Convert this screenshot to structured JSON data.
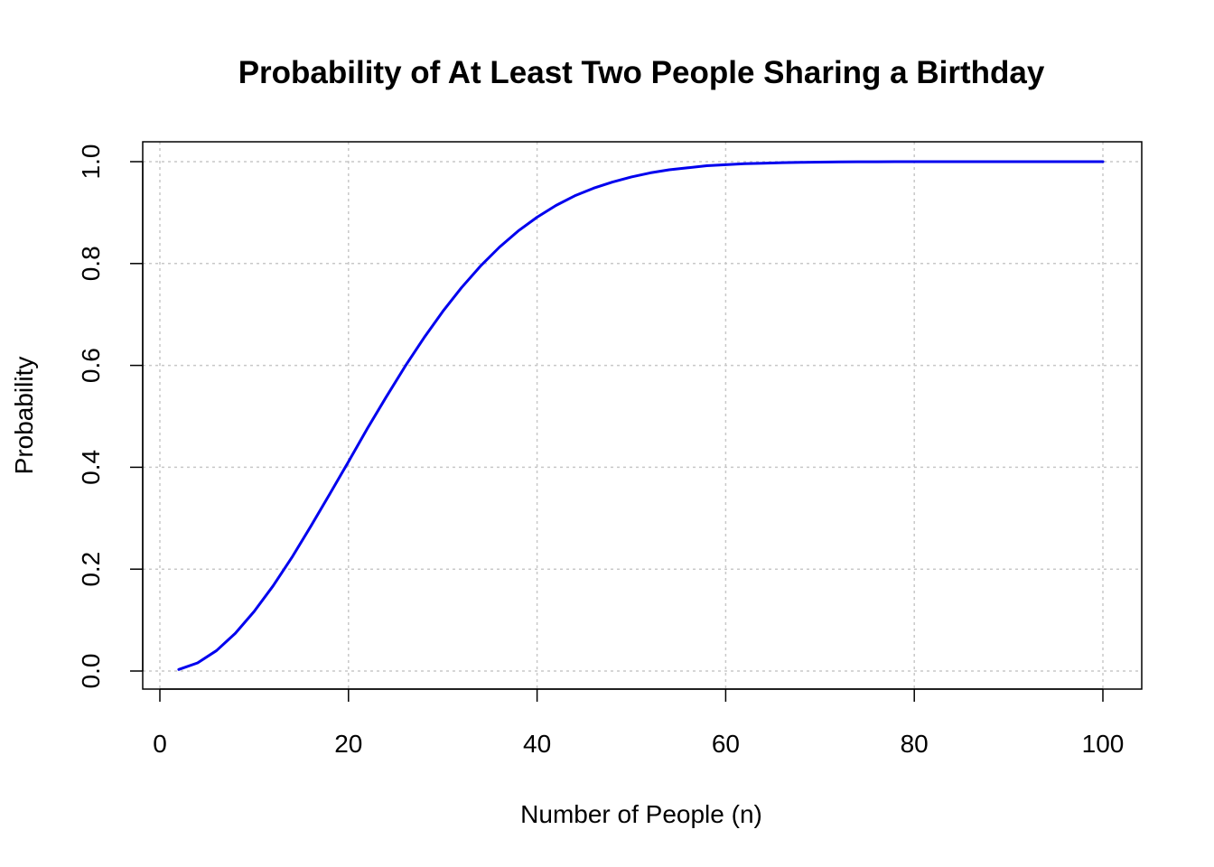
{
  "chart_data": {
    "type": "line",
    "title": "Probability of At Least Two People Sharing a Birthday",
    "xlabel": "Number of People (n)",
    "ylabel": "Probability",
    "xlim": [
      0,
      100
    ],
    "ylim": [
      0,
      1
    ],
    "x_ticks": [
      0,
      20,
      40,
      60,
      80,
      100
    ],
    "x_tick_labels": [
      "0",
      "20",
      "40",
      "60",
      "80",
      "100"
    ],
    "y_ticks": [
      0,
      0.2,
      0.4,
      0.6,
      0.8,
      1.0
    ],
    "y_tick_labels": [
      "0.0",
      "0.2",
      "0.4",
      "0.6",
      "0.8",
      "1.0"
    ],
    "grid": true,
    "line_color": "#0000ee",
    "grid_color": "#c8c8c8",
    "series": [
      {
        "x": [
          2,
          4,
          6,
          8,
          10,
          12,
          14,
          16,
          18,
          20,
          22,
          24,
          26,
          28,
          30,
          32,
          34,
          36,
          38,
          40,
          42,
          44,
          46,
          48,
          50,
          52,
          54,
          56,
          58,
          60,
          62,
          64,
          66,
          68,
          70,
          72,
          74,
          76,
          78,
          80,
          82,
          84,
          86,
          88,
          90,
          92,
          94,
          96,
          98,
          100
        ],
        "values": [
          0.003,
          0.016,
          0.04,
          0.074,
          0.117,
          0.167,
          0.223,
          0.284,
          0.347,
          0.411,
          0.476,
          0.538,
          0.598,
          0.654,
          0.706,
          0.753,
          0.795,
          0.832,
          0.864,
          0.891,
          0.914,
          0.933,
          0.948,
          0.96,
          0.97,
          0.978,
          0.984,
          0.988,
          0.992,
          0.994,
          0.996,
          0.997,
          0.998,
          0.9987,
          0.9992,
          0.9995,
          0.9997,
          0.9998,
          0.9999,
          0.99991,
          0.99995,
          0.99997,
          0.99998,
          0.99999,
          0.999994,
          0.999997,
          0.999998,
          0.999999,
          0.9999995,
          0.9999997
        ]
      }
    ]
  }
}
